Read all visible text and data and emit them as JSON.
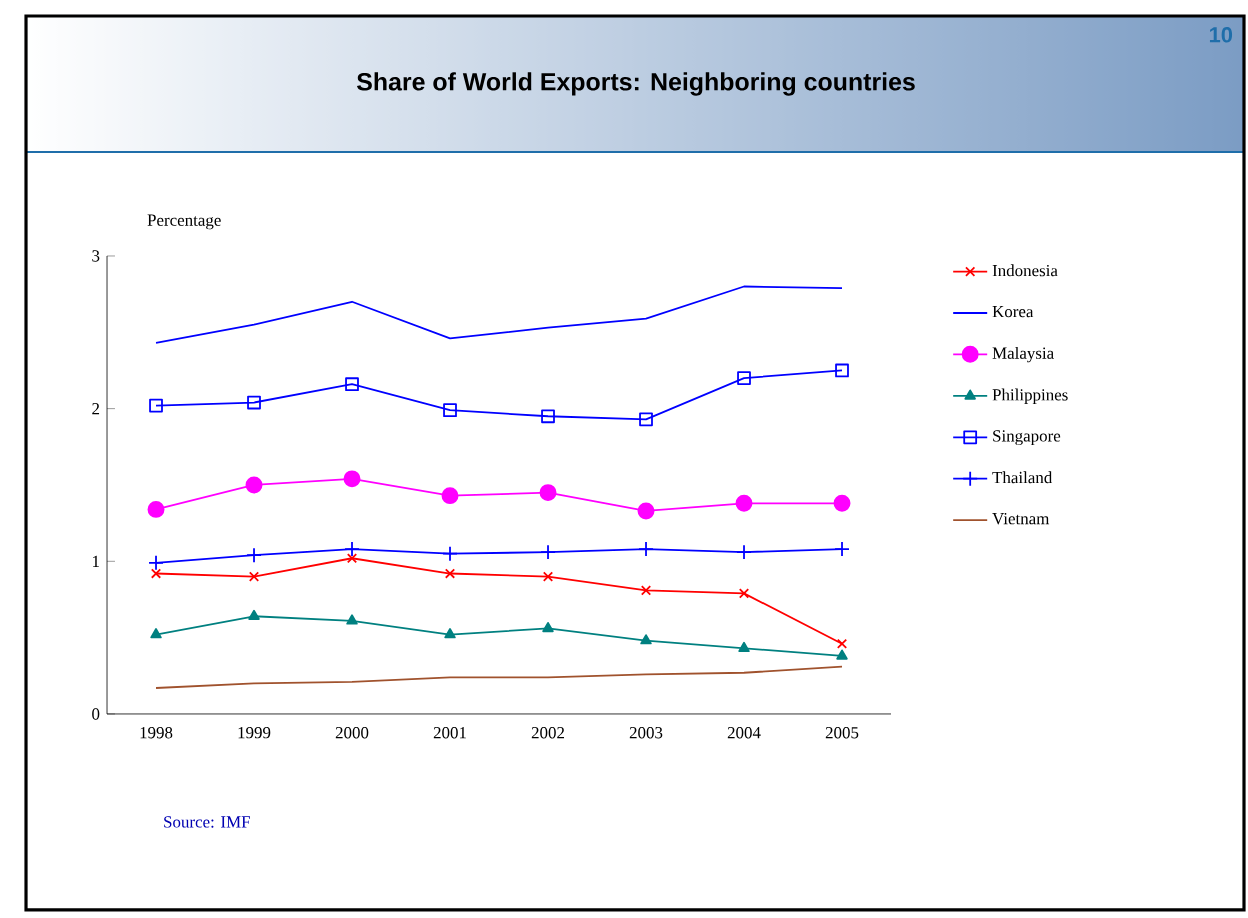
{
  "chart_data": {
    "type": "line",
    "title": "Share of World Exports: Neighboring countries",
    "ylabel": "Percentage",
    "categories": [
      "1998",
      "1999",
      "2000",
      "2001",
      "2002",
      "2003",
      "2004",
      "2005"
    ],
    "ylim": [
      0,
      3
    ],
    "yticks": [
      0,
      1,
      2,
      3
    ],
    "grid": false,
    "legend": "right",
    "annotations": [
      "Source: IMF",
      "10"
    ],
    "series": [
      {
        "name": "Indonesia",
        "color": "#ff0000",
        "marker": "cross",
        "values": [
          0.92,
          0.9,
          1.02,
          0.92,
          0.9,
          0.81,
          0.79,
          0.46
        ]
      },
      {
        "name": "Korea",
        "color": "#0000ff",
        "marker": "none",
        "values": [
          2.43,
          2.55,
          2.7,
          2.46,
          2.53,
          2.59,
          2.8,
          2.79
        ]
      },
      {
        "name": "Malaysia",
        "color": "#ff00ff",
        "marker": "circle",
        "values": [
          1.34,
          1.5,
          1.54,
          1.43,
          1.45,
          1.33,
          1.38,
          1.38
        ]
      },
      {
        "name": "Philippines",
        "color": "#008080",
        "marker": "triangle",
        "values": [
          0.52,
          0.64,
          0.61,
          0.52,
          0.56,
          0.48,
          0.43,
          0.38
        ]
      },
      {
        "name": "Singapore",
        "color": "#0000ff",
        "marker": "square",
        "values": [
          2.02,
          2.04,
          2.16,
          1.99,
          1.95,
          1.93,
          2.2,
          2.25
        ]
      },
      {
        "name": "Thailand",
        "color": "#0000ff",
        "marker": "plus",
        "values": [
          0.99,
          1.04,
          1.08,
          1.05,
          1.06,
          1.08,
          1.06,
          1.08
        ]
      },
      {
        "name": "Vietnam",
        "color": "#a0522d",
        "marker": "none",
        "values": [
          0.17,
          0.2,
          0.21,
          0.24,
          0.24,
          0.26,
          0.27,
          0.31
        ]
      }
    ]
  }
}
